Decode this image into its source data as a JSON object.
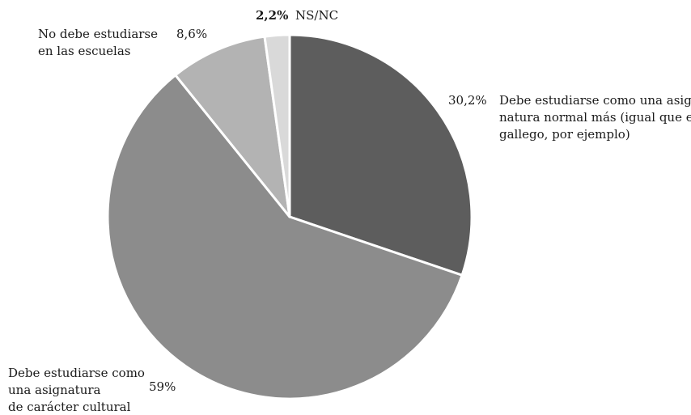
{
  "chart_data": {
    "type": "pie",
    "start_angle_deg": 0,
    "direction": "clockwise",
    "slices": [
      {
        "label": [
          "Debe estudiarse como una asig-",
          "natura normal más (igual que el",
          "gallego, por ejemplo)"
        ],
        "value": 30.2,
        "value_label": "30,2%",
        "color": "#5d5d5d"
      },
      {
        "label": [
          "Debe estudiarse como",
          "una asignatura",
          "de carácter cultural"
        ],
        "value": 59,
        "value_label": "59%",
        "color": "#8c8c8c"
      },
      {
        "label": [
          "No debe estudiarse",
          "en las escuelas"
        ],
        "value": 8.6,
        "value_label": "8,6%",
        "color": "#b3b3b3"
      },
      {
        "label": [
          "NS/NC"
        ],
        "value": 2.2,
        "value_label": "2,2%",
        "color": "#d9d9d9"
      }
    ]
  }
}
